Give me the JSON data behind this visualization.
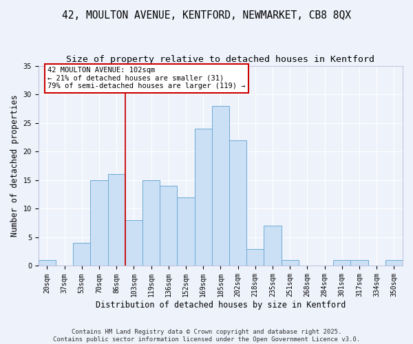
{
  "title": "42, MOULTON AVENUE, KENTFORD, NEWMARKET, CB8 8QX",
  "subtitle": "Size of property relative to detached houses in Kentford",
  "xlabel": "Distribution of detached houses by size in Kentford",
  "ylabel": "Number of detached properties",
  "categories": [
    "20sqm",
    "37sqm",
    "53sqm",
    "70sqm",
    "86sqm",
    "103sqm",
    "119sqm",
    "136sqm",
    "152sqm",
    "169sqm",
    "185sqm",
    "202sqm",
    "218sqm",
    "235sqm",
    "251sqm",
    "268sqm",
    "284sqm",
    "301sqm",
    "317sqm",
    "334sqm",
    "350sqm"
  ],
  "values": [
    1,
    0,
    4,
    15,
    16,
    8,
    15,
    14,
    12,
    24,
    28,
    22,
    3,
    7,
    1,
    0,
    0,
    1,
    1,
    0,
    1
  ],
  "bar_color": "#cce0f5",
  "bar_edge_color": "#6aaad4",
  "annotation_text": "42 MOULTON AVENUE: 102sqm\n← 21% of detached houses are smaller (31)\n79% of semi-detached houses are larger (119) →",
  "annotation_box_color": "#ffffff",
  "annotation_box_edge": "#cc0000",
  "ref_line_color": "#cc0000",
  "ylim": [
    0,
    35
  ],
  "yticks": [
    0,
    5,
    10,
    15,
    20,
    25,
    30,
    35
  ],
  "background_color": "#eef2fb",
  "grid_color": "#ffffff",
  "footer_line1": "Contains HM Land Registry data © Crown copyright and database right 2025.",
  "footer_line2": "Contains public sector information licensed under the Open Government Licence v3.0.",
  "title_fontsize": 10.5,
  "subtitle_fontsize": 9.5,
  "axis_label_fontsize": 8.5,
  "tick_fontsize": 7,
  "annotation_fontsize": 7.5,
  "footer_fontsize": 6.5
}
